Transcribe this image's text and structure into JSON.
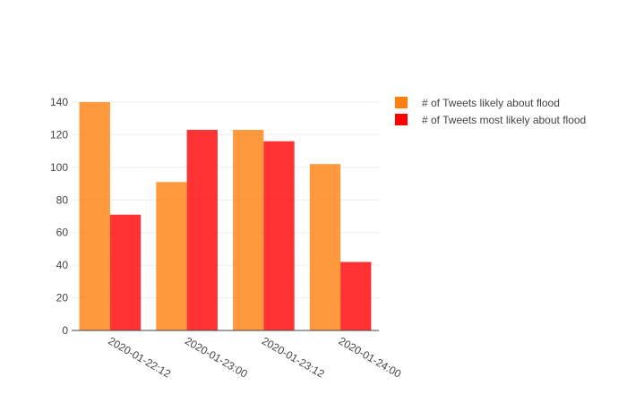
{
  "chart_data": {
    "type": "bar",
    "title": "",
    "xlabel": "",
    "ylabel": "",
    "categories": [
      "2020-01-22:12",
      "2020-01-23:00",
      "2020-01-23:12",
      "2020-01-24:00"
    ],
    "series": [
      {
        "name": "# of Tweets likely about flood",
        "values": [
          140,
          91,
          123,
          102
        ],
        "color": "#ff7f0e"
      },
      {
        "name": "# of Tweets most likely about flood",
        "values": [
          71,
          123,
          116,
          42
        ],
        "color": "#ff0000"
      }
    ],
    "ylim": [
      0,
      140
    ],
    "yticks": [
      0,
      20,
      40,
      60,
      80,
      100,
      120,
      140
    ],
    "grid": true,
    "legend_position": "top-right"
  }
}
